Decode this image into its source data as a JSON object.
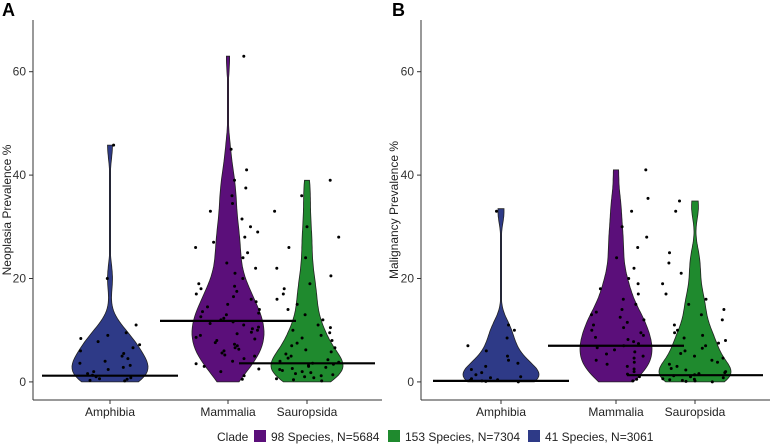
{
  "chart_data": [
    {
      "type": "violin",
      "panel_label": "A",
      "ylabel": "Neoplasia Prevalence %",
      "categories": [
        "Amphibia",
        "Mammalia",
        "Sauropsida"
      ],
      "yticks": [
        0,
        20,
        40,
        60
      ],
      "ylim": [
        -3.5,
        70
      ],
      "medians": [
        1.2,
        11.8,
        3.6
      ],
      "maxima": [
        45.8,
        63,
        39
      ],
      "fill_colors": [
        "#2e3a87",
        "#5b0f7a",
        "#1f8a2e"
      ],
      "points": [
        [
          0.2,
          0.3,
          0.5,
          0.6,
          0.8,
          1.0,
          1.3,
          1.6,
          2.0,
          2.4,
          2.8,
          3.2,
          3.6,
          4.0,
          4.5,
          5.0,
          5.5,
          6.0,
          6.6,
          7.2,
          7.8,
          8.4,
          9.0,
          9.5,
          11.0,
          20.0,
          45.8
        ],
        [
          0.5,
          1.2,
          2.0,
          2.5,
          3.0,
          3.5,
          4.0,
          4.5,
          5.0,
          5.2,
          5.6,
          6.0,
          6.3,
          6.6,
          7.0,
          7.3,
          7.6,
          8.0,
          8.3,
          8.6,
          9.0,
          9.3,
          9.6,
          10.0,
          10.3,
          10.6,
          11.0,
          11.3,
          11.6,
          12.0,
          12.3,
          12.6,
          13.0,
          13.3,
          13.6,
          14.0,
          14.5,
          15.0,
          15.5,
          16.0,
          16.5,
          17.0,
          17.5,
          18.0,
          18.5,
          19.0,
          20.0,
          21.0,
          22.0,
          23.0,
          24.0,
          25.0,
          26.0,
          27.0,
          28.0,
          29.0,
          30.0,
          31.5,
          33.0,
          34.5,
          36.0,
          37.5,
          39.0,
          41.0,
          45.0,
          63.0
        ],
        [
          0.2,
          0.4,
          0.6,
          0.8,
          1.0,
          1.2,
          1.4,
          1.6,
          1.8,
          2.0,
          2.2,
          2.4,
          2.6,
          2.8,
          3.0,
          3.2,
          3.4,
          3.6,
          3.8,
          4.0,
          4.3,
          4.6,
          5.0,
          5.4,
          5.8,
          6.2,
          6.6,
          7.0,
          7.5,
          8.0,
          8.5,
          9.0,
          9.5,
          10.0,
          10.5,
          11.0,
          12.0,
          13.0,
          14.0,
          15.0,
          16.0,
          17.0,
          18.0,
          19.0,
          20.5,
          22.0,
          24.0,
          26.0,
          28.0,
          30.0,
          33.0,
          36.0,
          39.0
        ]
      ]
    },
    {
      "type": "violin",
      "panel_label": "B",
      "ylabel": "Malignancy Prevalence %",
      "categories": [
        "Amphibia",
        "Mammalia",
        "Sauropsida"
      ],
      "yticks": [
        0,
        20,
        40,
        60
      ],
      "ylim": [
        -3.5,
        70
      ],
      "medians": [
        0.2,
        7.0,
        1.3
      ],
      "maxima": [
        33.5,
        41,
        35
      ],
      "fill_colors": [
        "#2e3a87",
        "#5b0f7a",
        "#1f8a2e"
      ],
      "points": [
        [
          0.0,
          0.1,
          0.2,
          0.3,
          0.4,
          0.6,
          0.8,
          1.0,
          1.4,
          1.8,
          2.4,
          3.0,
          3.6,
          4.2,
          5.0,
          6.0,
          7.0,
          8.5,
          10.0,
          11.0,
          33.0
        ],
        [
          0.2,
          0.5,
          1.0,
          1.5,
          2.0,
          2.5,
          3.0,
          3.4,
          3.8,
          4.2,
          4.6,
          5.0,
          5.4,
          5.8,
          6.2,
          6.6,
          7.0,
          7.4,
          7.8,
          8.2,
          8.6,
          9.0,
          9.5,
          10.0,
          10.5,
          11.0,
          11.5,
          12.0,
          12.5,
          13.0,
          13.5,
          14.0,
          15.0,
          16.0,
          17.0,
          18.0,
          19.0,
          20.0,
          22.0,
          24.0,
          26.0,
          28.0,
          30.0,
          33.0,
          35.5,
          41.0
        ],
        [
          0.0,
          0.1,
          0.2,
          0.3,
          0.4,
          0.5,
          0.6,
          0.8,
          1.0,
          1.2,
          1.4,
          1.6,
          1.8,
          2.0,
          2.3,
          2.6,
          3.0,
          3.4,
          3.8,
          4.2,
          4.6,
          5.0,
          5.5,
          6.0,
          6.5,
          7.0,
          7.5,
          8.0,
          8.5,
          9.0,
          9.5,
          10.0,
          11.0,
          12.0,
          13.0,
          14.0,
          15.0,
          16.0,
          17.0,
          19.0,
          21.0,
          23.0,
          25.0,
          33.0,
          35.0
        ]
      ]
    }
  ],
  "legend": {
    "title": "Clade",
    "items": [
      {
        "label": "98 Species, N=5684",
        "color": "#5b0f7a"
      },
      {
        "label": "153 Species, N=7304",
        "color": "#1f8a2e"
      },
      {
        "label": "41 Species, N=3061",
        "color": "#2e3a87"
      }
    ]
  }
}
